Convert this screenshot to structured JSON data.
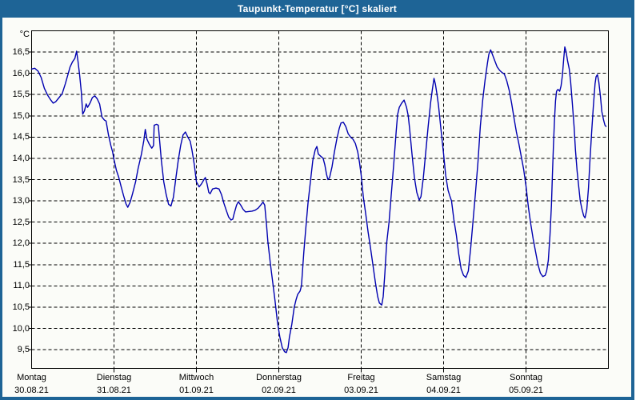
{
  "window": {
    "title": "Taupunkt-Temperatur [°C] skaliert"
  },
  "colors": {
    "titlebar": "#1e6496",
    "border": "#1e6496",
    "plot_background": "#fbfcf8",
    "grid": "#000000",
    "frame": "#000000",
    "line": "#0000b0",
    "label_text": "#000000",
    "title_text": "#ffffff"
  },
  "chart_data": {
    "type": "line",
    "title": "Taupunkt-Temperatur [°C] skaliert",
    "y_unit": "°C",
    "grid": true,
    "legend": "none",
    "ylim": [
      9.06,
      17.0
    ],
    "xlim_hours": [
      0,
      168
    ],
    "y_ticks": [
      {
        "value": 16.5,
        "label": "16,5"
      },
      {
        "value": 16.0,
        "label": "16,0"
      },
      {
        "value": 15.5,
        "label": "15,5"
      },
      {
        "value": 15.0,
        "label": "15,0"
      },
      {
        "value": 14.5,
        "label": "14,5"
      },
      {
        "value": 14.0,
        "label": "14,0"
      },
      {
        "value": 13.5,
        "label": "13,5"
      },
      {
        "value": 13.0,
        "label": "13,0"
      },
      {
        "value": 12.5,
        "label": "12,5"
      },
      {
        "value": 12.0,
        "label": "12,0"
      },
      {
        "value": 11.5,
        "label": "11,5"
      },
      {
        "value": 11.0,
        "label": "11,0"
      },
      {
        "value": 10.5,
        "label": "10,5"
      },
      {
        "value": 10.0,
        "label": "10,0"
      },
      {
        "value": 9.5,
        "label": "9,5"
      }
    ],
    "x_day_ticks": [
      {
        "hour": 0,
        "day": "Montag",
        "date": "30.08.21"
      },
      {
        "hour": 24,
        "day": "Dienstag",
        "date": "31.08.21"
      },
      {
        "hour": 48,
        "day": "Mittwoch",
        "date": "01.09.21"
      },
      {
        "hour": 72,
        "day": "Donnerstag",
        "date": "02.09.21"
      },
      {
        "hour": 96,
        "day": "Freitag",
        "date": "03.09.21"
      },
      {
        "hour": 120,
        "day": "Samstag",
        "date": "04.09.21"
      },
      {
        "hour": 144,
        "day": "Sonntag",
        "date": "05.09.21"
      }
    ],
    "series": [
      {
        "name": "Taupunkt",
        "color": "#0000b0",
        "points": [
          [
            0,
            16.1
          ],
          [
            0.9,
            16.12
          ],
          [
            1.9,
            16.05
          ],
          [
            2.8,
            15.9
          ],
          [
            3.7,
            15.65
          ],
          [
            4.7,
            15.48
          ],
          [
            5.6,
            15.37
          ],
          [
            6.3,
            15.3
          ],
          [
            7,
            15.33
          ],
          [
            7.9,
            15.42
          ],
          [
            8.9,
            15.52
          ],
          [
            9.8,
            15.75
          ],
          [
            10.5,
            15.95
          ],
          [
            11.2,
            16.15
          ],
          [
            11.9,
            16.27
          ],
          [
            12.6,
            16.35
          ],
          [
            13.1,
            16.52
          ],
          [
            13.5,
            16.3
          ],
          [
            14,
            15.95
          ],
          [
            14.5,
            15.55
          ],
          [
            14.9,
            15.04
          ],
          [
            15.4,
            15.12
          ],
          [
            15.9,
            15.28
          ],
          [
            16.3,
            15.2
          ],
          [
            17,
            15.3
          ],
          [
            17.7,
            15.43
          ],
          [
            18.4,
            15.47
          ],
          [
            19.1,
            15.4
          ],
          [
            19.8,
            15.28
          ],
          [
            20.5,
            14.97
          ],
          [
            21.2,
            14.9
          ],
          [
            21.7,
            14.88
          ],
          [
            22.4,
            14.55
          ],
          [
            23.1,
            14.3
          ],
          [
            23.6,
            14.15
          ],
          [
            24,
            13.97
          ],
          [
            24.7,
            13.72
          ],
          [
            25.4,
            13.55
          ],
          [
            26.1,
            13.33
          ],
          [
            26.8,
            13.12
          ],
          [
            27.5,
            12.93
          ],
          [
            28,
            12.85
          ],
          [
            28.7,
            12.97
          ],
          [
            29.4,
            13.17
          ],
          [
            30.3,
            13.45
          ],
          [
            31,
            13.75
          ],
          [
            32,
            14.1
          ],
          [
            32.7,
            14.42
          ],
          [
            33.1,
            14.68
          ],
          [
            33.6,
            14.45
          ],
          [
            34.3,
            14.33
          ],
          [
            35,
            14.24
          ],
          [
            35.5,
            14.3
          ],
          [
            35.7,
            14.78
          ],
          [
            36.4,
            14.8
          ],
          [
            36.9,
            14.78
          ],
          [
            37.3,
            14.4
          ],
          [
            37.8,
            13.95
          ],
          [
            38.5,
            13.45
          ],
          [
            39.2,
            13.15
          ],
          [
            39.9,
            12.92
          ],
          [
            40.6,
            12.88
          ],
          [
            41.3,
            13.08
          ],
          [
            42,
            13.53
          ],
          [
            42.7,
            13.95
          ],
          [
            43.4,
            14.3
          ],
          [
            44.1,
            14.55
          ],
          [
            44.8,
            14.62
          ],
          [
            45.5,
            14.5
          ],
          [
            46.2,
            14.4
          ],
          [
            46.7,
            14.2
          ],
          [
            47.4,
            13.85
          ],
          [
            48,
            13.45
          ],
          [
            48.8,
            13.33
          ],
          [
            49.5,
            13.4
          ],
          [
            50.2,
            13.5
          ],
          [
            50.6,
            13.55
          ],
          [
            51.1,
            13.4
          ],
          [
            51.6,
            13.2
          ],
          [
            52,
            13.17
          ],
          [
            52.7,
            13.28
          ],
          [
            53.7,
            13.3
          ],
          [
            54.6,
            13.28
          ],
          [
            55.3,
            13.15
          ],
          [
            56,
            12.95
          ],
          [
            56.7,
            12.78
          ],
          [
            57.4,
            12.62
          ],
          [
            58.1,
            12.55
          ],
          [
            58.6,
            12.57
          ],
          [
            59,
            12.7
          ],
          [
            59.7,
            12.9
          ],
          [
            60.2,
            12.98
          ],
          [
            60.9,
            12.9
          ],
          [
            61.6,
            12.8
          ],
          [
            62.3,
            12.74
          ],
          [
            63.2,
            12.75
          ],
          [
            64.2,
            12.76
          ],
          [
            65.1,
            12.78
          ],
          [
            66,
            12.83
          ],
          [
            66.7,
            12.9
          ],
          [
            67.4,
            12.97
          ],
          [
            67.9,
            12.9
          ],
          [
            68.4,
            12.45
          ],
          [
            68.8,
            12.05
          ],
          [
            69.5,
            11.55
          ],
          [
            70.2,
            11.1
          ],
          [
            70.9,
            10.65
          ],
          [
            71.6,
            10.15
          ],
          [
            72.3,
            9.8
          ],
          [
            73,
            9.55
          ],
          [
            73.7,
            9.45
          ],
          [
            74.2,
            9.43
          ],
          [
            74.7,
            9.55
          ],
          [
            75.1,
            9.8
          ],
          [
            75.8,
            10.1
          ],
          [
            76.5,
            10.5
          ],
          [
            77,
            10.67
          ],
          [
            77.5,
            10.8
          ],
          [
            78.2,
            10.88
          ],
          [
            78.6,
            11
          ],
          [
            79.3,
            11.8
          ],
          [
            79.8,
            12.3
          ],
          [
            80.5,
            12.95
          ],
          [
            81.2,
            13.45
          ],
          [
            81.9,
            13.95
          ],
          [
            82.6,
            14.2
          ],
          [
            83.1,
            14.28
          ],
          [
            83.5,
            14.1
          ],
          [
            84.2,
            14.05
          ],
          [
            84.9,
            14
          ],
          [
            85.4,
            13.85
          ],
          [
            85.9,
            13.62
          ],
          [
            86.3,
            13.5
          ],
          [
            86.8,
            13.55
          ],
          [
            87.5,
            13.8
          ],
          [
            88.2,
            14.15
          ],
          [
            88.9,
            14.45
          ],
          [
            89.6,
            14.7
          ],
          [
            90.1,
            14.83
          ],
          [
            90.8,
            14.85
          ],
          [
            91.5,
            14.75
          ],
          [
            92.2,
            14.58
          ],
          [
            92.9,
            14.5
          ],
          [
            93.6,
            14.45
          ],
          [
            94.3,
            14.35
          ],
          [
            95,
            14.15
          ],
          [
            95.5,
            13.9
          ],
          [
            96,
            13.6
          ],
          [
            96.6,
            13.1
          ],
          [
            97.3,
            12.7
          ],
          [
            98,
            12.27
          ],
          [
            98.7,
            11.9
          ],
          [
            99.4,
            11.5
          ],
          [
            100.1,
            11.1
          ],
          [
            100.8,
            10.75
          ],
          [
            101.3,
            10.6
          ],
          [
            102,
            10.55
          ],
          [
            102.4,
            10.75
          ],
          [
            102.9,
            11.3
          ],
          [
            103.4,
            12
          ],
          [
            104.1,
            12.5
          ],
          [
            104.8,
            13.2
          ],
          [
            105.5,
            13.9
          ],
          [
            106.2,
            14.65
          ],
          [
            106.6,
            15.03
          ],
          [
            107.1,
            15.2
          ],
          [
            107.8,
            15.3
          ],
          [
            108.5,
            15.37
          ],
          [
            109.2,
            15.2
          ],
          [
            109.7,
            15
          ],
          [
            110.1,
            14.7
          ],
          [
            110.8,
            14.1
          ],
          [
            111.5,
            13.55
          ],
          [
            112.2,
            13.2
          ],
          [
            112.9,
            13.02
          ],
          [
            113.4,
            13.1
          ],
          [
            114.1,
            13.55
          ],
          [
            114.8,
            14.15
          ],
          [
            115.5,
            14.75
          ],
          [
            116.2,
            15.3
          ],
          [
            116.7,
            15.6
          ],
          [
            117.2,
            15.88
          ],
          [
            117.6,
            15.75
          ],
          [
            118,
            15.55
          ],
          [
            118.5,
            15.25
          ],
          [
            119.2,
            14.7
          ],
          [
            120,
            14.1
          ],
          [
            120.6,
            13.6
          ],
          [
            121.3,
            13.25
          ],
          [
            121.8,
            13.12
          ],
          [
            122.3,
            13
          ],
          [
            123,
            12.55
          ],
          [
            123.7,
            12.2
          ],
          [
            124.4,
            11.75
          ],
          [
            125.1,
            11.4
          ],
          [
            125.8,
            11.25
          ],
          [
            126.5,
            11.2
          ],
          [
            127.2,
            11.35
          ],
          [
            127.9,
            11.9
          ],
          [
            128.6,
            12.55
          ],
          [
            129.3,
            13.2
          ],
          [
            130,
            13.9
          ],
          [
            130.7,
            14.75
          ],
          [
            131.4,
            15.37
          ],
          [
            132.1,
            15.85
          ],
          [
            132.8,
            16.25
          ],
          [
            133.2,
            16.45
          ],
          [
            133.7,
            16.55
          ],
          [
            134.2,
            16.45
          ],
          [
            134.9,
            16.3
          ],
          [
            135.6,
            16.15
          ],
          [
            136.3,
            16.07
          ],
          [
            137,
            16.02
          ],
          [
            137.7,
            15.98
          ],
          [
            138.4,
            15.82
          ],
          [
            139.1,
            15.6
          ],
          [
            139.8,
            15.3
          ],
          [
            140.5,
            14.95
          ],
          [
            141.2,
            14.62
          ],
          [
            141.9,
            14.35
          ],
          [
            142.6,
            14.05
          ],
          [
            143.3,
            13.75
          ],
          [
            144,
            13.35
          ],
          [
            144.7,
            12.85
          ],
          [
            145.4,
            12.45
          ],
          [
            146.1,
            12.1
          ],
          [
            146.8,
            11.8
          ],
          [
            147.5,
            11.5
          ],
          [
            148.2,
            11.3
          ],
          [
            148.9,
            11.22
          ],
          [
            149.6,
            11.25
          ],
          [
            150,
            11.35
          ],
          [
            150.5,
            11.6
          ],
          [
            151,
            12.2
          ],
          [
            151.4,
            12.9
          ],
          [
            151.7,
            13.6
          ],
          [
            152,
            14.3
          ],
          [
            152.3,
            14.9
          ],
          [
            152.6,
            15.35
          ],
          [
            152.9,
            15.58
          ],
          [
            153.3,
            15.62
          ],
          [
            153.8,
            15.58
          ],
          [
            154.2,
            15.7
          ],
          [
            154.6,
            15.95
          ],
          [
            155,
            16.35
          ],
          [
            155.3,
            16.62
          ],
          [
            155.7,
            16.5
          ],
          [
            156.1,
            16.3
          ],
          [
            156.6,
            16.1
          ],
          [
            157,
            15.8
          ],
          [
            157.5,
            15.3
          ],
          [
            158,
            14.75
          ],
          [
            158.4,
            14.2
          ],
          [
            158.9,
            13.7
          ],
          [
            159.4,
            13.3
          ],
          [
            159.8,
            13
          ],
          [
            160.3,
            12.8
          ],
          [
            160.8,
            12.65
          ],
          [
            161.2,
            12.6
          ],
          [
            161.7,
            12.8
          ],
          [
            162.2,
            13.3
          ],
          [
            162.6,
            13.9
          ],
          [
            163.1,
            14.6
          ],
          [
            163.6,
            15.2
          ],
          [
            164.1,
            15.75
          ],
          [
            164.4,
            15.92
          ],
          [
            164.8,
            15.97
          ],
          [
            165.2,
            15.8
          ],
          [
            165.7,
            15.45
          ],
          [
            166.1,
            15.1
          ],
          [
            166.6,
            14.9
          ],
          [
            167,
            14.78
          ],
          [
            167.3,
            14.75
          ]
        ]
      }
    ]
  }
}
